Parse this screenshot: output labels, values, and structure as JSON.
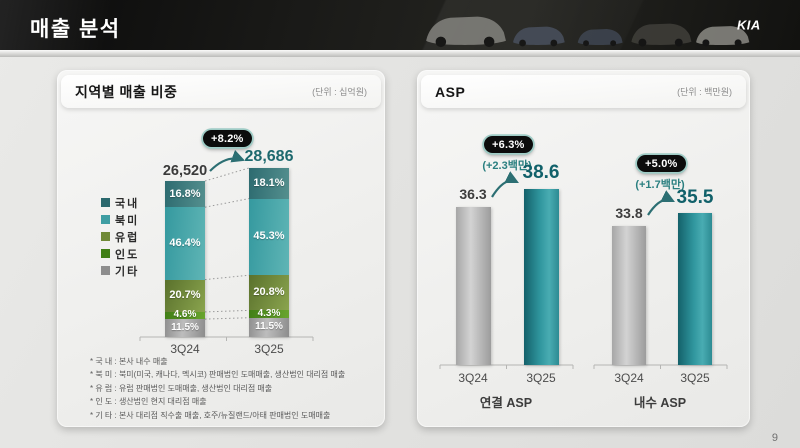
{
  "header": {
    "title": "매출 분석",
    "logo": "KIA"
  },
  "page_number": "9",
  "left_panel": {
    "title": "지역별 매출 비중",
    "unit": "(단위 : 십억원)",
    "badge": "+8.2%",
    "legend": [
      "국내",
      "북미",
      "유럽",
      "인도",
      "기타"
    ],
    "totals_display": [
      "26,520",
      "28,686"
    ],
    "x_labels": [
      "3Q24",
      "3Q25"
    ],
    "footnotes": [
      "* 국 내 : 본사 내수 매출",
      "* 북 미 : 북미(미국, 캐나다, 멕시코) 판매법인 도매매출, 생산법인 대리점 매출",
      "* 유 럽 : 유럽 판매법인 도매매출, 생산법인 대리점 매출",
      "* 인 도 : 생산법인 현지 대리점 매출",
      "* 기 타 : 본사 대리점 직수출 매출, 호주/뉴질랜드/아태 판매법인 도매매출"
    ]
  },
  "right_panel": {
    "title": "ASP",
    "unit": "(단위 : 백만원)",
    "groups": [
      {
        "name": "연결 ASP",
        "badge": "+6.3%",
        "delta": "(+2.3백만)",
        "x_labels": [
          "3Q24",
          "3Q25"
        ],
        "values_display": [
          "36.3",
          "38.6"
        ]
      },
      {
        "name": "내수 ASP",
        "badge": "+5.0%",
        "delta": "(+1.7백만)",
        "x_labels": [
          "3Q24",
          "3Q25"
        ],
        "values_display": [
          "33.8",
          "35.5"
        ]
      }
    ]
  },
  "colors": {
    "accent_teal": "#1d696e",
    "badge_ring": "#9fccc6",
    "prev_bar_gray": "#b5b5b5",
    "current_bar_teal": "#2f959d"
  },
  "chart_data": [
    {
      "type": "bar",
      "subtype": "stacked-percent",
      "title": "지역별 매출 비중",
      "unit": "십억원",
      "categories": [
        "3Q24",
        "3Q25"
      ],
      "totals": [
        26520,
        28686
      ],
      "totals_display": [
        "26,520",
        "28,686"
      ],
      "growth_badge": "+8.2%",
      "legend_position": "left",
      "series": [
        {
          "key": "domestic",
          "name": "국내",
          "values": [
            16.8,
            18.1
          ],
          "values_display": [
            "16.8%",
            "18.1%"
          ],
          "color": "#2a686d"
        },
        {
          "key": "north-america",
          "name": "북미",
          "values": [
            46.4,
            45.3
          ],
          "values_display": [
            "46.4%",
            "45.3%"
          ],
          "color": "#3f9ea3"
        },
        {
          "key": "europe",
          "name": "유럽",
          "values": [
            20.7,
            20.8
          ],
          "values_display": [
            "20.7%",
            "20.8%"
          ],
          "color": "#6f8936"
        },
        {
          "key": "india",
          "name": "인도",
          "values": [
            4.6,
            4.3
          ],
          "values_display": [
            "4.6%",
            "4.3%"
          ],
          "color": "#407f15"
        },
        {
          "key": "others",
          "name": "기타",
          "values": [
            11.5,
            11.5
          ],
          "values_display": [
            "11.5%",
            "11.5%"
          ],
          "color": "#8d8d8d"
        }
      ]
    },
    {
      "type": "bar",
      "title": "ASP",
      "unit": "백만원",
      "groups": [
        {
          "name": "연결 ASP",
          "badge": "+6.3%",
          "delta": "+2.3백만",
          "categories": [
            "3Q24",
            "3Q25"
          ],
          "values": [
            36.3,
            38.6
          ]
        },
        {
          "name": "내수 ASP",
          "badge": "+5.0%",
          "delta": "+1.7백만",
          "categories": [
            "3Q24",
            "3Q25"
          ],
          "values": [
            33.8,
            35.5
          ]
        }
      ]
    }
  ]
}
